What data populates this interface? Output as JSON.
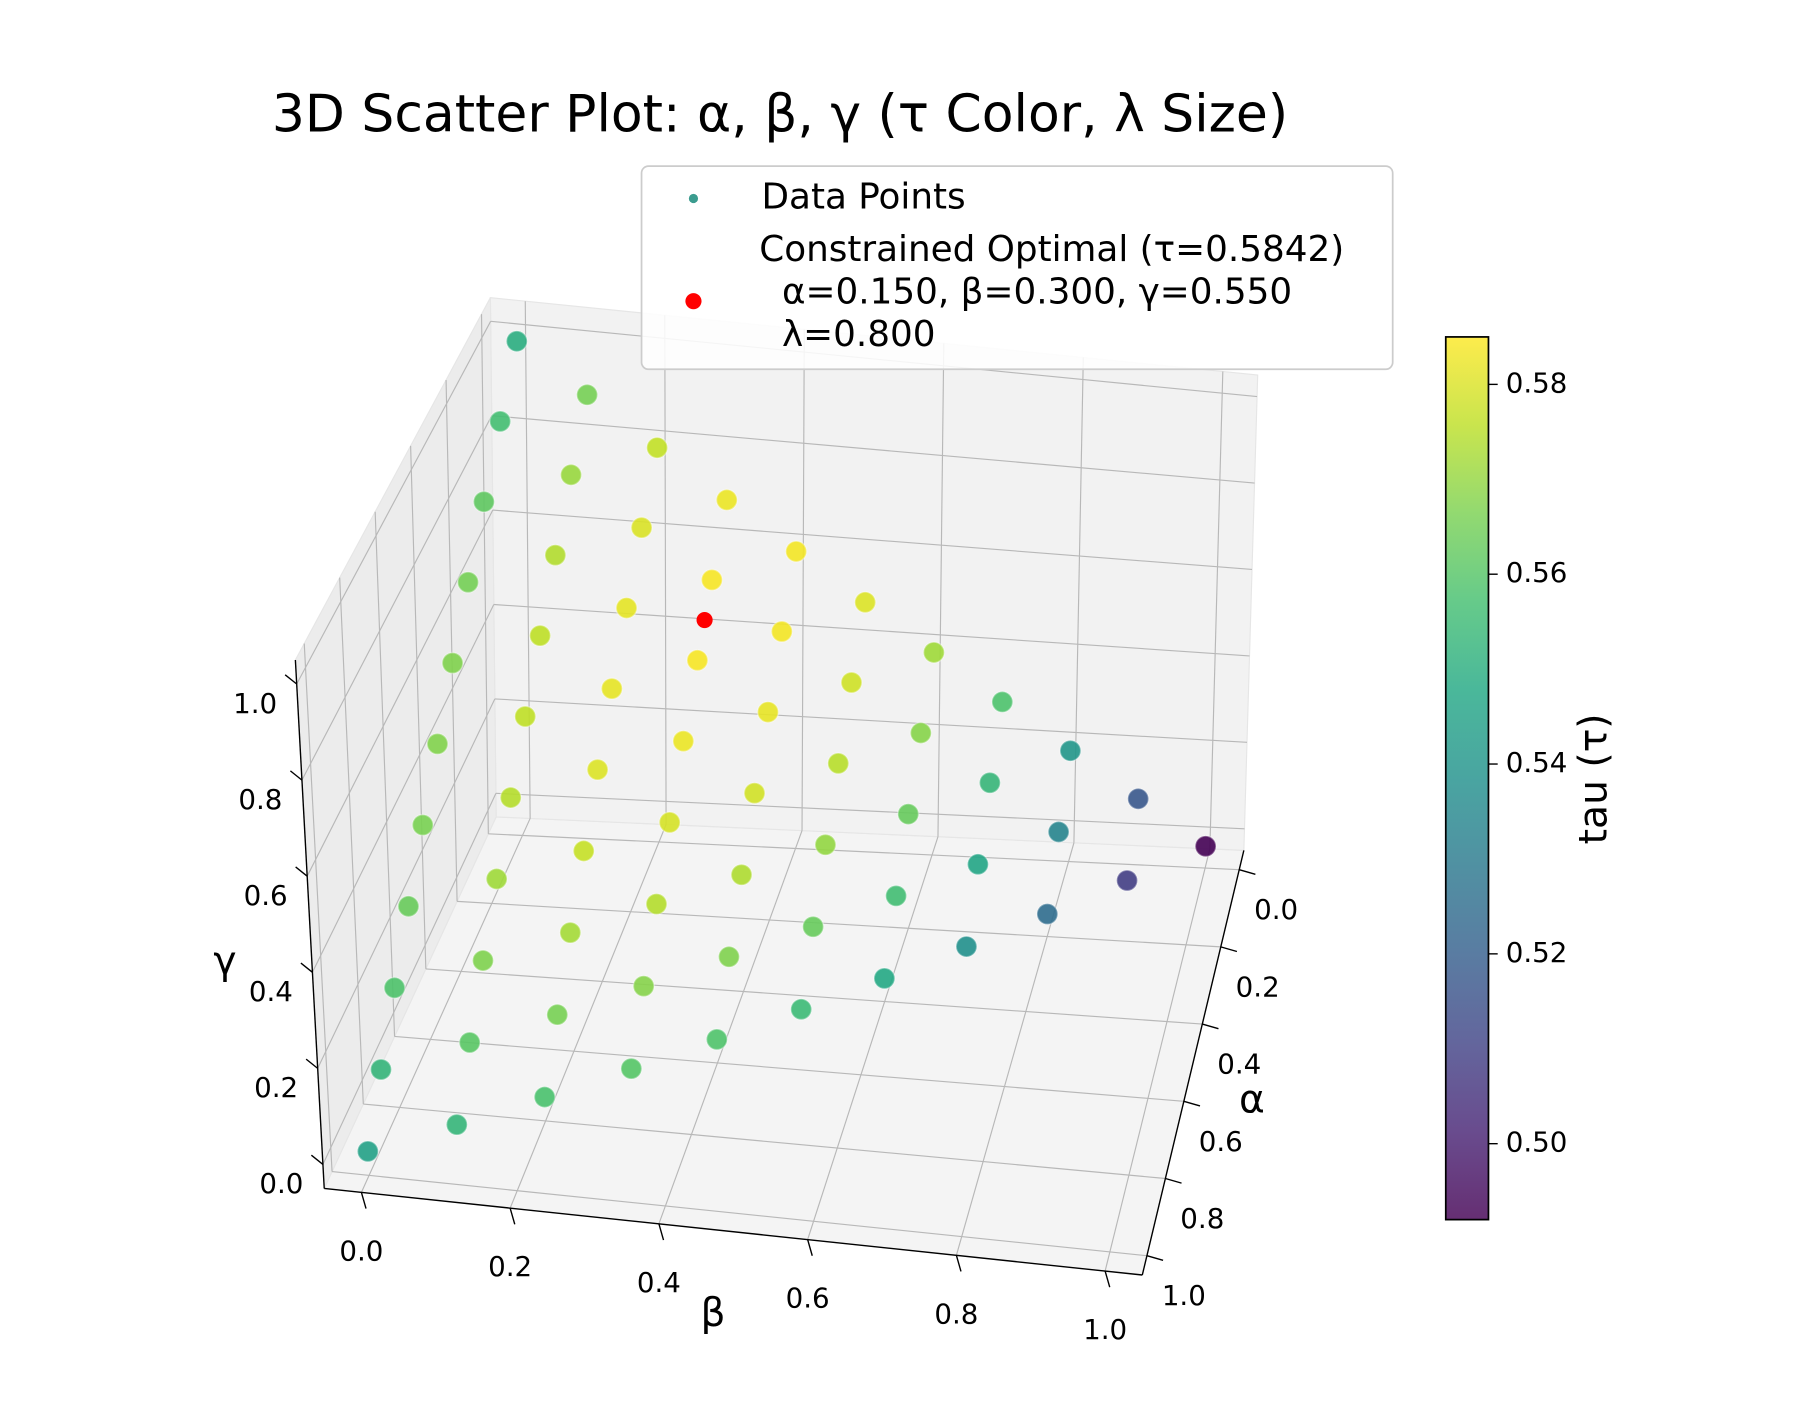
{
  "chart_data": {
    "type": "scatter3d",
    "title": "3D Scatter Plot: α, β, γ (τ Color, λ Size)",
    "xlabel": "α",
    "ylabel": "β",
    "zlabel": "γ",
    "colorbar_label": "tau (τ)",
    "colormap": "viridis",
    "grid": true,
    "legend_loc": "upper right",
    "xlim": [
      -0.05,
      1.05
    ],
    "ylim": [
      -0.05,
      1.05
    ],
    "zlim": [
      -0.05,
      1.05
    ],
    "clim": [
      0.492,
      0.585
    ],
    "xticks": [
      {
        "value": 0,
        "label": "0.0"
      },
      0.2,
      0.4,
      0.6,
      0.8,
      {
        "value": 1,
        "label": "1.0"
      }
    ],
    "yticks": [
      {
        "value": 0,
        "label": "0.0"
      },
      0.2,
      0.4,
      0.6,
      0.8,
      {
        "value": 1,
        "label": "1.0"
      }
    ],
    "zticks": [
      {
        "value": 0,
        "label": "0.0"
      },
      0.2,
      0.4,
      0.6,
      0.8,
      {
        "value": 1,
        "label": "1.0"
      }
    ],
    "cticks": [
      {
        "value": 0.5,
        "label": "0.50"
      },
      0.52,
      0.54,
      0.56,
      0.58
    ],
    "series": [
      {
        "name": "Data Points",
        "color": "#3b9c8f",
        "x": [
          0,
          0,
          0,
          0,
          0,
          0,
          0,
          0,
          0,
          0,
          0,
          0.1,
          0.1,
          0.1,
          0.1,
          0.1,
          0.1,
          0.1,
          0.1,
          0.1,
          0.1,
          0.2,
          0.2,
          0.2,
          0.2,
          0.2,
          0.2,
          0.2,
          0.2,
          0.2,
          0.3,
          0.3,
          0.3,
          0.3,
          0.3,
          0.3,
          0.3,
          0.3,
          0.4,
          0.4,
          0.4,
          0.4,
          0.4,
          0.4,
          0.4,
          0.5,
          0.5,
          0.5,
          0.5,
          0.5,
          0.5,
          0.6,
          0.6,
          0.6,
          0.6,
          0.6,
          0.7,
          0.7,
          0.7,
          0.7,
          0.8,
          0.8,
          0.8,
          0.9,
          0.9,
          1
        ],
        "y": [
          0,
          0.1,
          0.2,
          0.3,
          0.4,
          0.5,
          0.6,
          0.7,
          0.8,
          0.9,
          1,
          0,
          0.1,
          0.2,
          0.3,
          0.4,
          0.5,
          0.6,
          0.7,
          0.8,
          0.9,
          0,
          0.1,
          0.2,
          0.3,
          0.4,
          0.5,
          0.6,
          0.7,
          0.8,
          0,
          0.1,
          0.2,
          0.3,
          0.4,
          0.5,
          0.6,
          0.7,
          0,
          0.1,
          0.2,
          0.3,
          0.4,
          0.5,
          0.6,
          0,
          0.1,
          0.2,
          0.3,
          0.4,
          0.5,
          0,
          0.1,
          0.2,
          0.3,
          0.4,
          0,
          0.1,
          0.2,
          0.3,
          0,
          0.1,
          0.2,
          0,
          0.1,
          0
        ],
        "z": [
          1,
          0.9,
          0.8,
          0.7,
          0.6,
          0.5,
          0.4,
          0.3,
          0.2,
          0.1,
          0,
          0.9,
          0.8,
          0.7,
          0.6,
          0.5,
          0.4,
          0.3,
          0.2,
          0.1,
          0,
          0.8,
          0.7,
          0.6,
          0.5,
          0.4,
          0.3,
          0.2,
          0.1,
          0,
          0.7,
          0.6,
          0.5,
          0.4,
          0.3,
          0.2,
          0.1,
          0,
          0.6,
          0.5,
          0.4,
          0.3,
          0.2,
          0.1,
          0,
          0.5,
          0.4,
          0.3,
          0.2,
          0.1,
          0,
          0.4,
          0.3,
          0.2,
          0.1,
          0,
          0.3,
          0.2,
          0.1,
          0,
          0.2,
          0.1,
          0,
          0.1,
          0,
          0
        ],
        "c": [
          0.55,
          0.5656,
          0.5764,
          0.5824,
          0.5836,
          0.58,
          0.5716,
          0.5584,
          0.5404,
          0.5176,
          0.49,
          0.5567,
          0.5706,
          0.5797,
          0.584,
          0.5835,
          0.5782,
          0.5681,
          0.5532,
          0.5335,
          0.509,
          0.5618,
          0.574,
          0.5814,
          0.584,
          0.5818,
          0.5748,
          0.563,
          0.5464,
          0.525,
          0.5653,
          0.5758,
          0.5815,
          0.5824,
          0.5785,
          0.5698,
          0.5563,
          0.538,
          0.5672,
          0.576,
          0.58,
          0.5792,
          0.5736,
          0.5632,
          0.548,
          0.5675,
          0.5746,
          0.5769,
          0.5744,
          0.5671,
          0.555,
          0.5662,
          0.5716,
          0.5722,
          0.568,
          0.559,
          0.5633,
          0.567,
          0.5659,
          0.56,
          0.5588,
          0.5608,
          0.558,
          0.5527,
          0.553,
          0.545
        ]
      },
      {
        "name": "Constrained Optimal (τ=0.5842)\n  α=0.150, β=0.300, γ=0.550\n  λ=0.800",
        "color": "red",
        "x": [
          0.15
        ],
        "y": [
          0.3
        ],
        "z": [
          0.55
        ],
        "c": [
          0.5842
        ]
      }
    ]
  }
}
